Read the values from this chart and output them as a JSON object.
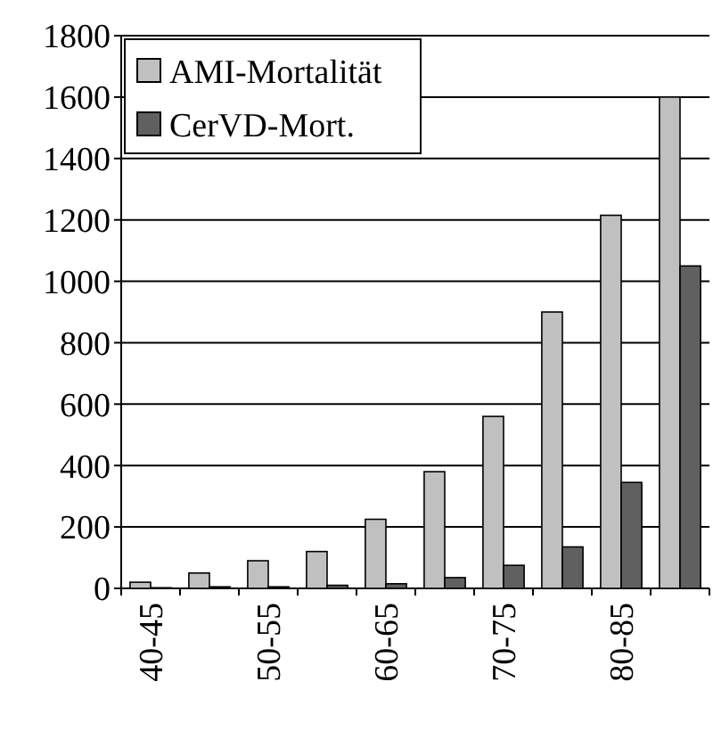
{
  "chart_data": {
    "type": "bar",
    "categories": [
      "40-45",
      null,
      "50-55",
      null,
      "60-65",
      null,
      "70-75",
      null,
      "80-85",
      null
    ],
    "series": [
      {
        "name": "AMI-Mortalität",
        "color": "#c0c0c0",
        "values": [
          20,
          50,
          90,
          120,
          225,
          380,
          560,
          900,
          1215,
          1600
        ]
      },
      {
        "name": "CerVD-Mort.",
        "color": "#606060",
        "values": [
          2,
          5,
          5,
          10,
          15,
          35,
          75,
          135,
          345,
          1050
        ]
      }
    ],
    "ylim": [
      0,
      1800
    ],
    "yticks": [
      0,
      200,
      400,
      600,
      800,
      1000,
      1200,
      1400,
      1600,
      1800
    ],
    "grid": "y",
    "legend": "top left"
  }
}
